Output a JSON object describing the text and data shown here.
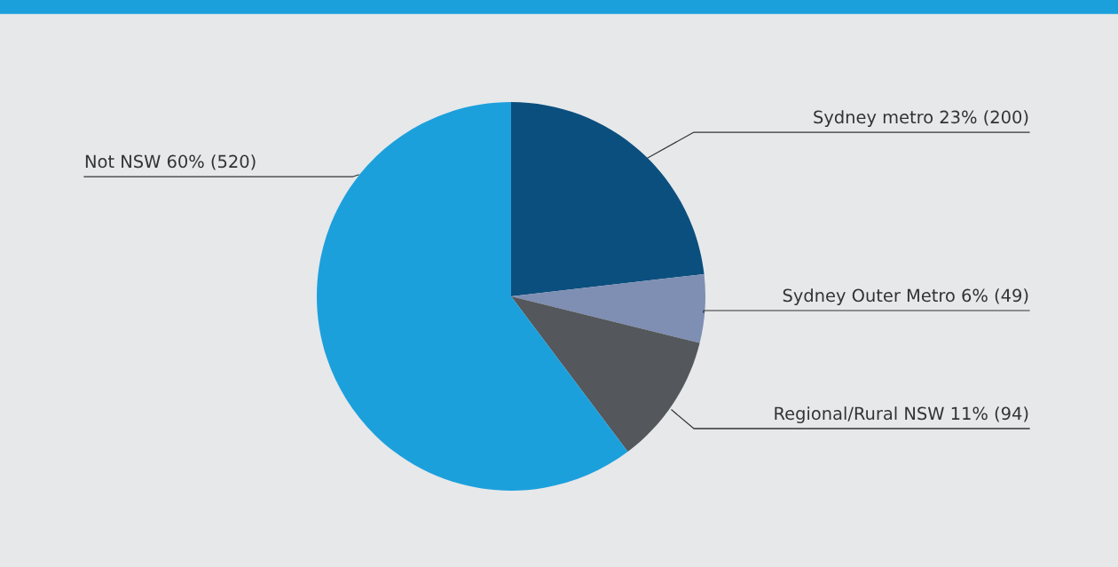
{
  "chart_data": {
    "type": "pie",
    "categories": [
      "Sydney metro",
      "Sydney Outer Metro",
      "Regional/Rural NSW",
      "Not NSW"
    ],
    "values": [
      200,
      49,
      94,
      520
    ],
    "value_labels": [
      "23% (200)",
      "6% (49)",
      "11% (94)",
      "60% (520)"
    ],
    "colors": [
      "#0b4f7e",
      "#7f8fb3",
      "#54575b",
      "#1ca0dc"
    ]
  }
}
